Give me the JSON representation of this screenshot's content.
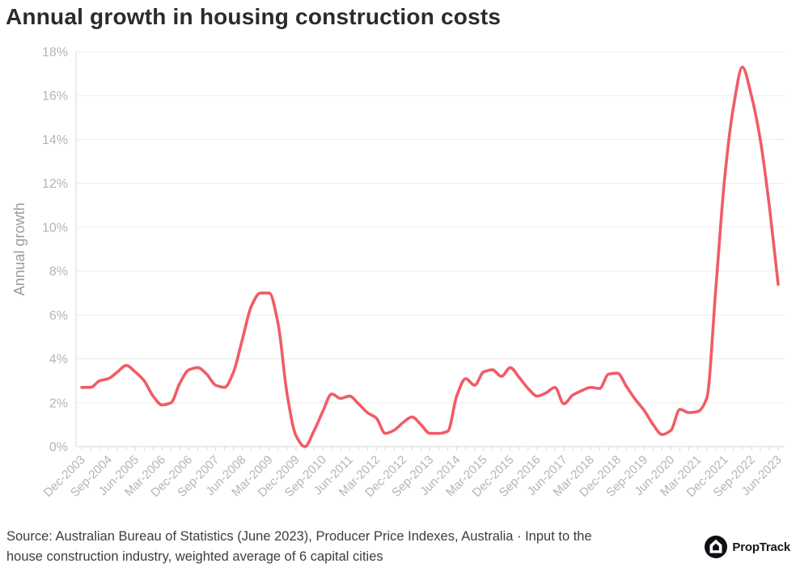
{
  "title": "Annual growth in housing construction costs",
  "footer": {
    "source_line1": "Source: Australian Bureau of Statistics (June 2023), Producer Price Indexes, Australia · Input to the",
    "source_line2": "house construction industry, weighted average of 6 capital cities",
    "brand": "PropTrack"
  },
  "colors": {
    "line": "#F05C67",
    "title_text": "#2B2B2B",
    "axis_text": "#B4B4B4",
    "axis_label_text": "#9B9B9B",
    "gridline": "#EDEDED",
    "axis_line": "#D8D8D8",
    "footer_text": "#3D3D3D",
    "logo_black": "#0E0E14",
    "background": "#FFFFFF"
  },
  "chart_data": {
    "type": "line",
    "title": "Annual growth in housing construction costs",
    "xlabel": "",
    "ylabel": "Annual growth",
    "ylim": [
      0,
      18
    ],
    "ytick_step": 2,
    "ytick_suffix": "%",
    "yticks": [
      "0%",
      "2%",
      "4%",
      "6%",
      "8%",
      "10%",
      "12%",
      "14%",
      "16%",
      "18%"
    ],
    "grid": "horizontal",
    "legend": "none",
    "x": [
      "Dec-2003",
      "Mar-2004",
      "Jun-2004",
      "Sep-2004",
      "Dec-2004",
      "Mar-2005",
      "Jun-2005",
      "Sep-2005",
      "Dec-2005",
      "Mar-2006",
      "Jun-2006",
      "Sep-2006",
      "Dec-2006",
      "Mar-2007",
      "Jun-2007",
      "Sep-2007",
      "Dec-2007",
      "Mar-2008",
      "Jun-2008",
      "Sep-2008",
      "Dec-2008",
      "Mar-2009",
      "Jun-2009",
      "Sep-2009",
      "Dec-2009",
      "Mar-2010",
      "Jun-2010",
      "Sep-2010",
      "Dec-2010",
      "Mar-2011",
      "Jun-2011",
      "Sep-2011",
      "Dec-2011",
      "Mar-2012",
      "Jun-2012",
      "Sep-2012",
      "Dec-2012",
      "Mar-2013",
      "Jun-2013",
      "Sep-2013",
      "Dec-2013",
      "Mar-2014",
      "Jun-2014",
      "Sep-2014",
      "Dec-2014",
      "Mar-2015",
      "Jun-2015",
      "Sep-2015",
      "Dec-2015",
      "Mar-2016",
      "Jun-2016",
      "Sep-2016",
      "Dec-2016",
      "Mar-2017",
      "Jun-2017",
      "Sep-2017",
      "Dec-2017",
      "Mar-2018",
      "Jun-2018",
      "Sep-2018",
      "Dec-2018",
      "Mar-2019",
      "Jun-2019",
      "Sep-2019",
      "Dec-2019",
      "Mar-2020",
      "Jun-2020",
      "Sep-2020",
      "Dec-2020",
      "Mar-2021",
      "Jun-2021",
      "Sep-2021",
      "Dec-2021",
      "Mar-2022",
      "Jun-2022",
      "Sep-2022",
      "Dec-2022",
      "Mar-2023",
      "Jun-2023"
    ],
    "values": [
      2.7,
      2.7,
      3.0,
      3.1,
      3.4,
      3.7,
      3.4,
      3.0,
      2.3,
      1.9,
      2.0,
      2.9,
      3.5,
      3.6,
      3.3,
      2.8,
      2.7,
      3.4,
      4.9,
      6.4,
      7.0,
      7.0,
      5.6,
      2.4,
      0.5,
      0.0,
      0.7,
      1.6,
      2.4,
      2.2,
      2.3,
      1.95,
      1.55,
      1.3,
      0.6,
      0.75,
      1.1,
      1.35,
      1.0,
      0.6,
      0.6,
      0.7,
      2.3,
      3.1,
      2.8,
      3.4,
      3.5,
      3.2,
      3.6,
      3.15,
      2.65,
      2.3,
      2.45,
      2.7,
      1.95,
      2.35,
      2.55,
      2.7,
      2.65,
      3.3,
      3.35,
      2.75,
      2.15,
      1.65,
      1.0,
      0.55,
      0.75,
      1.7,
      1.55,
      1.6,
      2.2,
      7.1,
      12.2,
      15.5,
      17.3,
      16.0,
      14.0,
      11.0,
      7.4
    ],
    "xticks_shown": [
      "Dec-2003",
      "Sep-2004",
      "Jun-2005",
      "Mar-2006",
      "Dec-2006",
      "Sep-2007",
      "Jun-2008",
      "Mar-2009",
      "Dec-2009",
      "Sep-2010",
      "Jun-2011",
      "Mar-2012",
      "Dec-2012",
      "Sep-2013",
      "Jun-2014",
      "Mar-2015",
      "Dec-2015",
      "Sep-2016",
      "Jun-2017",
      "Mar-2018",
      "Dec-2018",
      "Sep-2019",
      "Jun-2020",
      "Mar-2021",
      "Dec-2021",
      "Sep-2022",
      "Jun-2023"
    ]
  }
}
